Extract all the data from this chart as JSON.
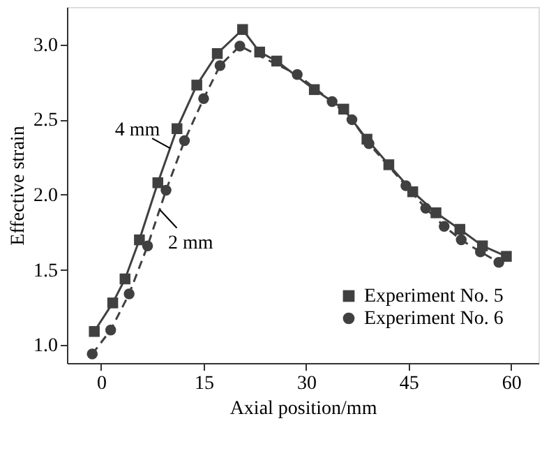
{
  "chart_data": {
    "type": "line",
    "xlabel": "Axial position/mm",
    "ylabel": "Effective strain",
    "xlim": [
      -5,
      64
    ],
    "xticks": [
      0,
      15,
      30,
      45,
      60
    ],
    "ylim": [
      0.88,
      3.25
    ],
    "yticks": [
      {
        "value": 1.0,
        "label": "1.0"
      },
      {
        "value": 1.5,
        "label": "1.5"
      },
      {
        "value": 2.0,
        "label": "2.0"
      },
      {
        "value": 2.5,
        "label": "2.5"
      },
      {
        "value": 3.0,
        "label": "3.0"
      }
    ],
    "grid": false,
    "legend": "bottom right",
    "series": [
      {
        "name": "Experiment No. 5",
        "color": "#404040",
        "marker": "square",
        "line_style": "solid",
        "x": [
          -1.0,
          1.7,
          3.5,
          5.6,
          8.3,
          11.1,
          14.0,
          17.0,
          20.7,
          23.2,
          25.7,
          31.2,
          35.5,
          38.9,
          42.1,
          45.6,
          49.0,
          52.5,
          55.8,
          59.3
        ],
        "values": [
          1.09,
          1.28,
          1.44,
          1.7,
          2.08,
          2.44,
          2.73,
          2.94,
          3.1,
          2.95,
          2.89,
          2.7,
          2.57,
          2.37,
          2.2,
          2.02,
          1.88,
          1.77,
          1.66,
          1.59
        ]
      },
      {
        "name": "Experiment No. 6",
        "color": "#404040",
        "marker": "circle",
        "line_style": "dashed",
        "x": [
          -1.3,
          1.4,
          4.1,
          6.8,
          9.5,
          12.2,
          15.0,
          17.4,
          20.3,
          28.7,
          33.8,
          36.7,
          39.2,
          44.6,
          47.5,
          50.2,
          52.7,
          55.5,
          58.2
        ],
        "values": [
          0.94,
          1.1,
          1.34,
          1.66,
          2.03,
          2.36,
          2.64,
          2.86,
          2.99,
          2.8,
          2.62,
          2.5,
          2.34,
          2.06,
          1.91,
          1.79,
          1.7,
          1.62,
          1.55
        ]
      }
    ],
    "annotations": [
      {
        "text": "4 mm",
        "x": 10.1,
        "y": 2.31
      },
      {
        "text": "2 mm",
        "x": 8.6,
        "y": 1.9
      }
    ]
  }
}
